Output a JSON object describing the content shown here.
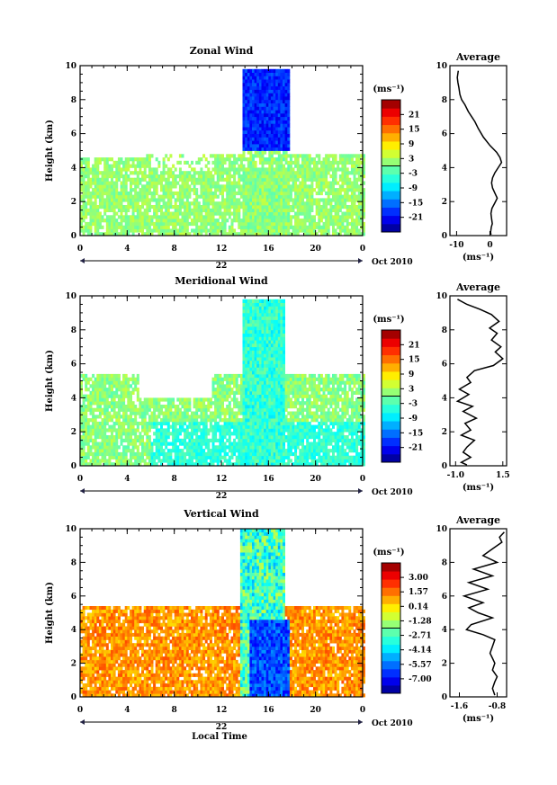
{
  "shared": {
    "time_ticks": [
      0,
      4,
      8,
      12,
      16,
      20,
      0
    ],
    "date_label": "22",
    "month_label": "Oct 2010",
    "height_ticks": [
      0,
      2,
      4,
      6,
      8,
      10
    ],
    "ylabel": "Height (km)",
    "xlabel": "Local Time",
    "colorbar_unit": "(ms⁻¹)",
    "avg_unit": "(ms⁻¹)",
    "avg_title": "Average"
  },
  "chart_data": [
    {
      "type": "heatmap",
      "title": "Zonal Wind",
      "ylabel": "Height (km)",
      "ylim": [
        0,
        10
      ],
      "xlim": [
        0,
        24
      ],
      "colorbar_labels": [
        "21",
        "15",
        "9",
        "3",
        "-3",
        "-9",
        "-15",
        "-21"
      ],
      "colorbar_range": [
        -24,
        24
      ],
      "profile": {
        "title": "Average",
        "xticks": [
          "-10",
          "0"
        ],
        "xlim": [
          -12,
          5
        ],
        "x": [
          -9.5,
          -9.8,
          -9.6,
          -9.3,
          -9.0,
          -8.5,
          -7.5,
          -6.5,
          -5.5,
          -4.5,
          -3.5,
          -2.0,
          0,
          2.0,
          3.0,
          3.5,
          2.5,
          1.5,
          0.8,
          0.5,
          0.8,
          1.5,
          2.2,
          1.4,
          0.6,
          0.3,
          0.5,
          0.7,
          0.4,
          0.2,
          0.3
        ],
        "y": [
          9.7,
          9.3,
          9.0,
          8.7,
          8.3,
          8.0,
          7.7,
          7.3,
          7.0,
          6.7,
          6.3,
          5.8,
          5.3,
          4.9,
          4.6,
          4.3,
          4.0,
          3.7,
          3.4,
          3.1,
          2.8,
          2.5,
          2.2,
          1.9,
          1.6,
          1.3,
          1.0,
          0.7,
          0.5,
          0.2,
          0.05
        ]
      }
    },
    {
      "type": "heatmap",
      "title": "Meridional Wind",
      "ylabel": "Height (km)",
      "ylim": [
        0,
        10
      ],
      "xlim": [
        0,
        24
      ],
      "colorbar_labels": [
        "21",
        "15",
        "9",
        "3",
        "-3",
        "-9",
        "-15",
        "-21"
      ],
      "colorbar_range": [
        -24,
        24
      ],
      "profile": {
        "title": "Average",
        "xticks": [
          "-1.0",
          "1.5"
        ],
        "xlim": [
          -1.3,
          1.7
        ],
        "x": [
          -0.9,
          -0.4,
          0.3,
          0.9,
          1.3,
          0.8,
          1.2,
          0.9,
          1.4,
          1.1,
          1.5,
          1.0,
          0.0,
          -0.4,
          -0.2,
          -0.8,
          -0.3,
          -0.9,
          -0.1,
          -0.6,
          0.1,
          -0.5,
          -0.2,
          -0.7,
          0.0,
          -0.4,
          -0.6,
          -0.2,
          -0.7,
          -0.4
        ],
        "y": [
          9.8,
          9.5,
          9.2,
          8.9,
          8.5,
          8.1,
          7.8,
          7.4,
          7.0,
          6.7,
          6.3,
          5.9,
          5.6,
          5.2,
          4.9,
          4.5,
          4.2,
          3.8,
          3.5,
          3.2,
          2.8,
          2.5,
          2.1,
          1.8,
          1.5,
          1.1,
          0.8,
          0.5,
          0.2,
          0.05
        ]
      }
    },
    {
      "type": "heatmap",
      "title": "Vertical Wind",
      "ylabel": "Height (km)",
      "xlabel": "Local Time",
      "ylim": [
        0,
        10
      ],
      "xlim": [
        0,
        24
      ],
      "colorbar_labels": [
        "3.00",
        "1.57",
        "0.14",
        "-1.28",
        "-2.71",
        "-4.14",
        "-5.57",
        "-7.00"
      ],
      "colorbar_range": [
        -7.7,
        3.7
      ],
      "profile": {
        "title": "Average",
        "xticks": [
          "-1.6",
          "-0.8"
        ],
        "xlim": [
          -1.8,
          -0.6
        ],
        "x": [
          -0.65,
          -0.75,
          -0.7,
          -0.9,
          -1.1,
          -0.8,
          -1.3,
          -0.9,
          -1.4,
          -1.0,
          -1.5,
          -1.1,
          -1.4,
          -1.2,
          -0.9,
          -1.35,
          -1.45,
          -1.1,
          -0.85,
          -0.9,
          -0.95,
          -0.9,
          -0.85,
          -0.9,
          -0.8,
          -0.85,
          -0.9,
          -0.85
        ],
        "y": [
          9.8,
          9.5,
          9.2,
          8.8,
          8.4,
          8.0,
          7.6,
          7.2,
          6.8,
          6.4,
          6.0,
          5.6,
          5.3,
          5.0,
          4.7,
          4.3,
          4.0,
          3.7,
          3.4,
          3.0,
          2.6,
          2.3,
          2.0,
          1.6,
          1.2,
          0.9,
          0.5,
          0.1
        ]
      }
    }
  ]
}
